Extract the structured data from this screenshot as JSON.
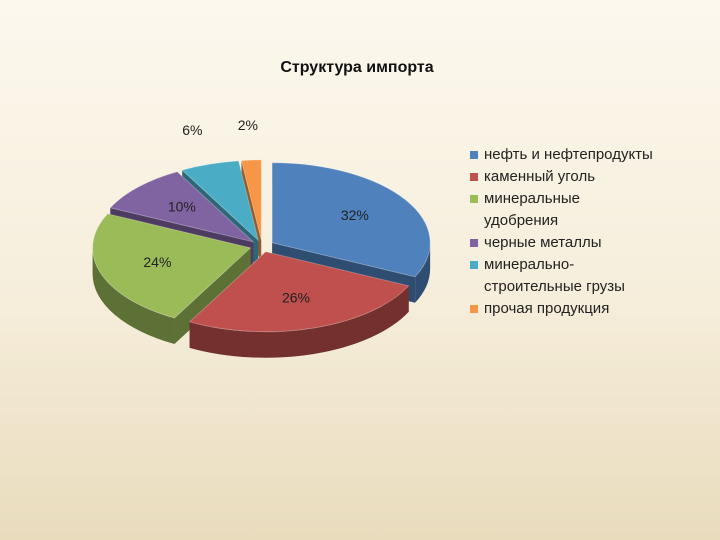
{
  "chart_data": {
    "type": "pie",
    "title": "Структура импорта",
    "categories": [
      "нефть и нефтепродукты",
      "каменный уголь",
      "минеральные удобрения",
      "черные металлы",
      "минерально-строительные грузы",
      "прочая продукция"
    ],
    "values": [
      32,
      26,
      24,
      10,
      6,
      2
    ],
    "value_labels": [
      "32%",
      "26%",
      "24%",
      "10%",
      "6%",
      "2%"
    ],
    "colors": [
      "#4f81bd",
      "#c0504d",
      "#9bbb59",
      "#8064a2",
      "#4bacc6",
      "#f79646"
    ],
    "legend": "right"
  }
}
